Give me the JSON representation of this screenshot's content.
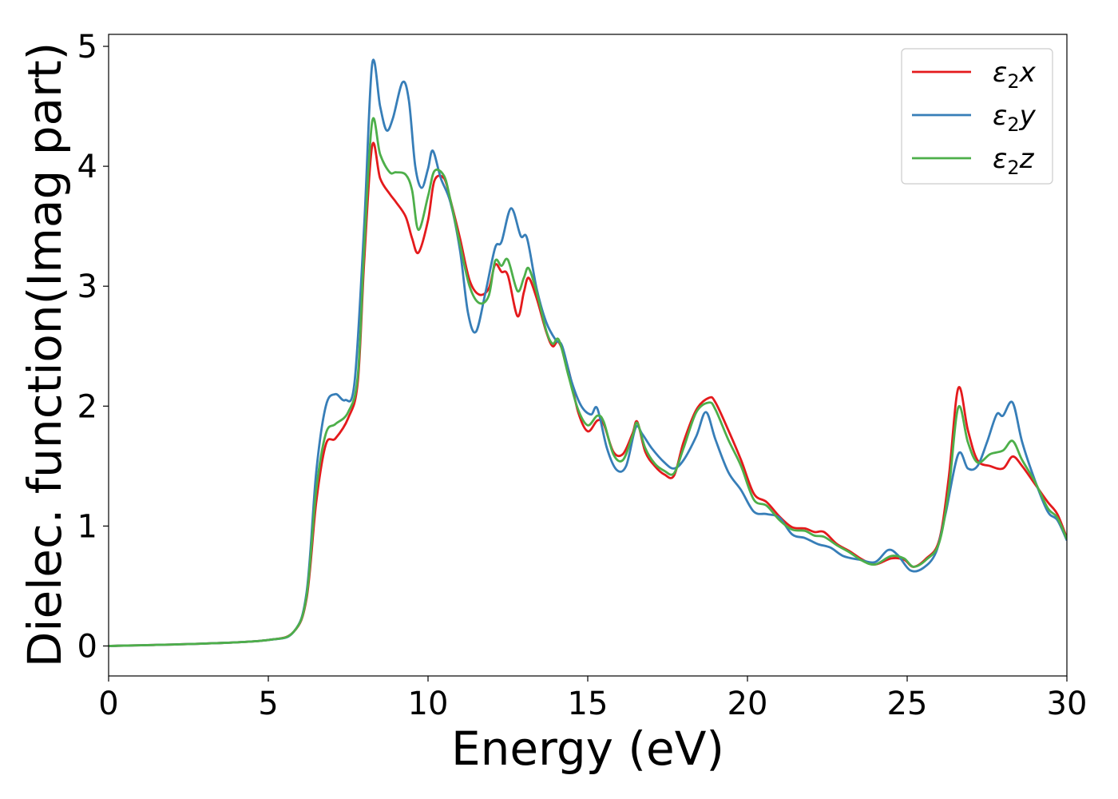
{
  "chart_data": {
    "type": "line",
    "title": "",
    "xlabel": "Energy (eV)",
    "ylabel": "Dielec. function(Imag part)",
    "xlim": [
      0,
      30
    ],
    "ylim": [
      -0.25,
      5.1
    ],
    "xticks": [
      0,
      5,
      10,
      15,
      20,
      25,
      30
    ],
    "yticks": [
      0,
      1,
      2,
      3,
      4,
      5
    ],
    "grid": false,
    "legend_position": "top-right",
    "series": [
      {
        "name": "ε2x",
        "legend_base": "ε",
        "legend_sub": "2",
        "legend_suffix": "x",
        "color": "#e41a1c",
        "points": [
          [
            0,
            0
          ],
          [
            3,
            0.02
          ],
          [
            5,
            0.05
          ],
          [
            5.8,
            0.12
          ],
          [
            6.2,
            0.4
          ],
          [
            6.5,
            1.2
          ],
          [
            6.8,
            1.68
          ],
          [
            7.1,
            1.73
          ],
          [
            7.5,
            1.9
          ],
          [
            7.8,
            2.2
          ],
          [
            8.0,
            3.2
          ],
          [
            8.25,
            4.17
          ],
          [
            8.5,
            3.9
          ],
          [
            8.8,
            3.77
          ],
          [
            9.0,
            3.7
          ],
          [
            9.3,
            3.58
          ],
          [
            9.5,
            3.4
          ],
          [
            9.7,
            3.28
          ],
          [
            10.0,
            3.55
          ],
          [
            10.2,
            3.88
          ],
          [
            10.5,
            3.9
          ],
          [
            10.7,
            3.72
          ],
          [
            11.0,
            3.4
          ],
          [
            11.3,
            3.05
          ],
          [
            11.6,
            2.93
          ],
          [
            11.9,
            2.98
          ],
          [
            12.1,
            3.18
          ],
          [
            12.3,
            3.12
          ],
          [
            12.5,
            3.09
          ],
          [
            12.8,
            2.75
          ],
          [
            13.0,
            2.95
          ],
          [
            13.15,
            3.07
          ],
          [
            13.4,
            2.9
          ],
          [
            13.7,
            2.62
          ],
          [
            13.9,
            2.5
          ],
          [
            14.1,
            2.53
          ],
          [
            14.4,
            2.3
          ],
          [
            14.7,
            1.95
          ],
          [
            15.0,
            1.79
          ],
          [
            15.3,
            1.88
          ],
          [
            15.5,
            1.85
          ],
          [
            15.8,
            1.62
          ],
          [
            16.1,
            1.6
          ],
          [
            16.4,
            1.77
          ],
          [
            16.55,
            1.87
          ],
          [
            16.8,
            1.62
          ],
          [
            17.1,
            1.5
          ],
          [
            17.4,
            1.43
          ],
          [
            17.7,
            1.42
          ],
          [
            18.0,
            1.7
          ],
          [
            18.4,
            1.97
          ],
          [
            18.8,
            2.07
          ],
          [
            19.0,
            2.03
          ],
          [
            19.4,
            1.8
          ],
          [
            19.8,
            1.55
          ],
          [
            20.2,
            1.27
          ],
          [
            20.6,
            1.2
          ],
          [
            21.0,
            1.08
          ],
          [
            21.4,
            0.99
          ],
          [
            21.8,
            0.98
          ],
          [
            22.1,
            0.95
          ],
          [
            22.4,
            0.95
          ],
          [
            22.8,
            0.85
          ],
          [
            23.2,
            0.79
          ],
          [
            23.6,
            0.72
          ],
          [
            24.0,
            0.68
          ],
          [
            24.5,
            0.73
          ],
          [
            24.9,
            0.72
          ],
          [
            25.2,
            0.66
          ],
          [
            25.6,
            0.73
          ],
          [
            26.0,
            0.88
          ],
          [
            26.3,
            1.4
          ],
          [
            26.6,
            2.15
          ],
          [
            26.9,
            1.8
          ],
          [
            27.2,
            1.55
          ],
          [
            27.6,
            1.5
          ],
          [
            28.0,
            1.48
          ],
          [
            28.3,
            1.58
          ],
          [
            28.6,
            1.5
          ],
          [
            29.0,
            1.35
          ],
          [
            29.4,
            1.2
          ],
          [
            29.7,
            1.1
          ],
          [
            30.0,
            0.9
          ]
        ]
      },
      {
        "name": "ε2y",
        "legend_base": "ε",
        "legend_sub": "2",
        "legend_suffix": "y",
        "color": "#377eb8",
        "points": [
          [
            0,
            0
          ],
          [
            3,
            0.02
          ],
          [
            5,
            0.05
          ],
          [
            5.8,
            0.12
          ],
          [
            6.2,
            0.45
          ],
          [
            6.5,
            1.45
          ],
          [
            6.8,
            2.0
          ],
          [
            7.1,
            2.1
          ],
          [
            7.4,
            2.05
          ],
          [
            7.7,
            2.2
          ],
          [
            8.0,
            3.5
          ],
          [
            8.25,
            4.85
          ],
          [
            8.5,
            4.5
          ],
          [
            8.7,
            4.3
          ],
          [
            8.9,
            4.4
          ],
          [
            9.2,
            4.7
          ],
          [
            9.4,
            4.55
          ],
          [
            9.6,
            4.0
          ],
          [
            9.8,
            3.82
          ],
          [
            10.0,
            3.98
          ],
          [
            10.15,
            4.13
          ],
          [
            10.4,
            3.9
          ],
          [
            10.7,
            3.7
          ],
          [
            11.0,
            3.3
          ],
          [
            11.25,
            2.78
          ],
          [
            11.5,
            2.62
          ],
          [
            11.8,
            2.95
          ],
          [
            12.1,
            3.32
          ],
          [
            12.3,
            3.37
          ],
          [
            12.6,
            3.65
          ],
          [
            12.9,
            3.42
          ],
          [
            13.1,
            3.4
          ],
          [
            13.4,
            2.98
          ],
          [
            13.7,
            2.7
          ],
          [
            14.0,
            2.55
          ],
          [
            14.2,
            2.5
          ],
          [
            14.5,
            2.2
          ],
          [
            14.8,
            2.0
          ],
          [
            15.1,
            1.93
          ],
          [
            15.3,
            1.98
          ],
          [
            15.6,
            1.65
          ],
          [
            15.9,
            1.47
          ],
          [
            16.2,
            1.5
          ],
          [
            16.5,
            1.82
          ],
          [
            16.7,
            1.77
          ],
          [
            17.0,
            1.65
          ],
          [
            17.4,
            1.53
          ],
          [
            17.7,
            1.48
          ],
          [
            18.0,
            1.55
          ],
          [
            18.4,
            1.75
          ],
          [
            18.7,
            1.95
          ],
          [
            19.0,
            1.72
          ],
          [
            19.4,
            1.45
          ],
          [
            19.8,
            1.3
          ],
          [
            20.2,
            1.12
          ],
          [
            20.6,
            1.1
          ],
          [
            21.0,
            1.07
          ],
          [
            21.4,
            0.93
          ],
          [
            21.8,
            0.9
          ],
          [
            22.2,
            0.85
          ],
          [
            22.6,
            0.82
          ],
          [
            23.0,
            0.75
          ],
          [
            23.5,
            0.72
          ],
          [
            24.0,
            0.7
          ],
          [
            24.4,
            0.8
          ],
          [
            24.7,
            0.76
          ],
          [
            25.1,
            0.63
          ],
          [
            25.5,
            0.65
          ],
          [
            25.9,
            0.78
          ],
          [
            26.2,
            1.1
          ],
          [
            26.6,
            1.6
          ],
          [
            26.9,
            1.48
          ],
          [
            27.2,
            1.5
          ],
          [
            27.5,
            1.7
          ],
          [
            27.8,
            1.93
          ],
          [
            28.0,
            1.92
          ],
          [
            28.3,
            2.03
          ],
          [
            28.6,
            1.7
          ],
          [
            29.0,
            1.38
          ],
          [
            29.4,
            1.12
          ],
          [
            29.7,
            1.05
          ],
          [
            30.0,
            0.88
          ]
        ]
      },
      {
        "name": "ε2z",
        "legend_base": "ε",
        "legend_sub": "2",
        "legend_suffix": "z",
        "color": "#4daf4a",
        "points": [
          [
            0,
            0
          ],
          [
            3,
            0.02
          ],
          [
            5,
            0.05
          ],
          [
            5.8,
            0.12
          ],
          [
            6.2,
            0.42
          ],
          [
            6.5,
            1.3
          ],
          [
            6.8,
            1.77
          ],
          [
            7.1,
            1.85
          ],
          [
            7.5,
            1.95
          ],
          [
            7.8,
            2.25
          ],
          [
            8.0,
            3.3
          ],
          [
            8.25,
            4.37
          ],
          [
            8.5,
            4.1
          ],
          [
            8.8,
            3.95
          ],
          [
            9.0,
            3.95
          ],
          [
            9.3,
            3.93
          ],
          [
            9.5,
            3.8
          ],
          [
            9.7,
            3.47
          ],
          [
            10.0,
            3.75
          ],
          [
            10.2,
            3.96
          ],
          [
            10.5,
            3.92
          ],
          [
            10.7,
            3.72
          ],
          [
            11.0,
            3.35
          ],
          [
            11.3,
            3.0
          ],
          [
            11.6,
            2.86
          ],
          [
            11.9,
            2.92
          ],
          [
            12.1,
            3.21
          ],
          [
            12.3,
            3.17
          ],
          [
            12.5,
            3.22
          ],
          [
            12.8,
            2.96
          ],
          [
            13.0,
            3.07
          ],
          [
            13.15,
            3.15
          ],
          [
            13.4,
            2.95
          ],
          [
            13.7,
            2.63
          ],
          [
            13.9,
            2.52
          ],
          [
            14.1,
            2.55
          ],
          [
            14.4,
            2.25
          ],
          [
            14.7,
            1.97
          ],
          [
            15.0,
            1.84
          ],
          [
            15.3,
            1.92
          ],
          [
            15.5,
            1.87
          ],
          [
            15.8,
            1.6
          ],
          [
            16.1,
            1.55
          ],
          [
            16.4,
            1.75
          ],
          [
            16.55,
            1.86
          ],
          [
            16.8,
            1.65
          ],
          [
            17.1,
            1.52
          ],
          [
            17.4,
            1.46
          ],
          [
            17.7,
            1.44
          ],
          [
            18.0,
            1.65
          ],
          [
            18.4,
            1.95
          ],
          [
            18.8,
            2.03
          ],
          [
            19.0,
            1.97
          ],
          [
            19.4,
            1.72
          ],
          [
            19.8,
            1.5
          ],
          [
            20.2,
            1.22
          ],
          [
            20.6,
            1.17
          ],
          [
            21.0,
            1.05
          ],
          [
            21.4,
            0.97
          ],
          [
            21.8,
            0.96
          ],
          [
            22.1,
            0.92
          ],
          [
            22.4,
            0.91
          ],
          [
            22.8,
            0.84
          ],
          [
            23.2,
            0.78
          ],
          [
            23.6,
            0.71
          ],
          [
            24.0,
            0.68
          ],
          [
            24.5,
            0.75
          ],
          [
            24.9,
            0.73
          ],
          [
            25.2,
            0.66
          ],
          [
            25.6,
            0.72
          ],
          [
            26.0,
            0.86
          ],
          [
            26.3,
            1.3
          ],
          [
            26.6,
            1.99
          ],
          [
            26.9,
            1.7
          ],
          [
            27.2,
            1.53
          ],
          [
            27.6,
            1.6
          ],
          [
            28.0,
            1.63
          ],
          [
            28.3,
            1.71
          ],
          [
            28.6,
            1.55
          ],
          [
            29.0,
            1.37
          ],
          [
            29.4,
            1.15
          ],
          [
            29.7,
            1.07
          ],
          [
            30.0,
            0.89
          ]
        ]
      }
    ]
  }
}
